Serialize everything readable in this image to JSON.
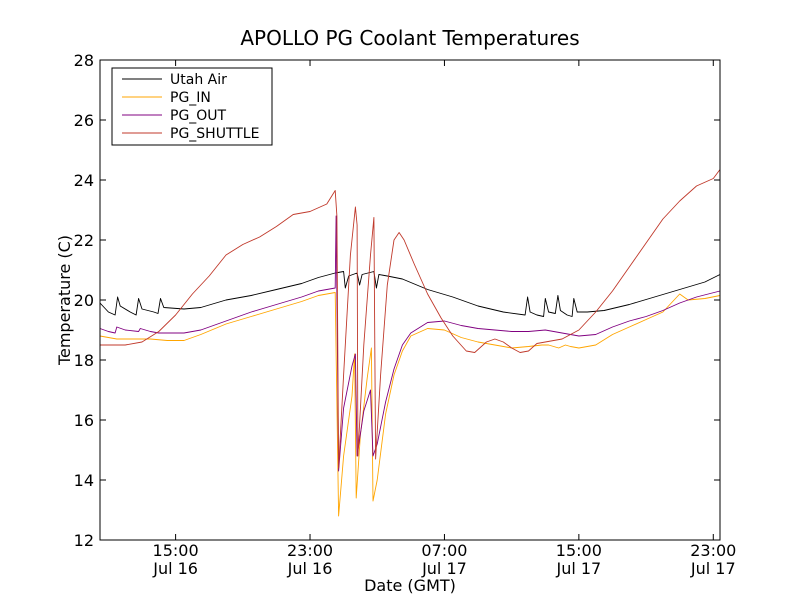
{
  "chart_data": {
    "type": "line",
    "title": "APOLLO PG Coolant Temperatures",
    "xlabel": "Date (GMT)",
    "ylabel": "Temperature (C)",
    "ylim": [
      12,
      28
    ],
    "xlim": [
      10.5,
      47.4
    ],
    "yticks": [
      12,
      14,
      16,
      18,
      20,
      22,
      24,
      26,
      28
    ],
    "xticks": [
      {
        "x": 15,
        "time": "15:00",
        "date": "Jul 16"
      },
      {
        "x": 23,
        "time": "23:00",
        "date": "Jul 16"
      },
      {
        "x": 31,
        "time": "07:00",
        "date": "Jul 17"
      },
      {
        "x": 39,
        "time": "15:00",
        "date": "Jul 17"
      },
      {
        "x": 47,
        "time": "23:00",
        "date": "Jul 17"
      }
    ],
    "x_units": "hours since 00:00 Jul 16 GMT",
    "legend_position": "upper-left",
    "series": [
      {
        "name": "Utah Air",
        "color": "#000000",
        "points": [
          [
            10.5,
            19.9
          ],
          [
            11.0,
            19.6
          ],
          [
            11.4,
            19.5
          ],
          [
            11.55,
            20.1
          ],
          [
            11.7,
            19.8
          ],
          [
            12.3,
            19.6
          ],
          [
            12.65,
            19.5
          ],
          [
            12.8,
            20.05
          ],
          [
            13.0,
            19.7
          ],
          [
            13.7,
            19.6
          ],
          [
            13.95,
            19.55
          ],
          [
            14.1,
            20.05
          ],
          [
            14.3,
            19.75
          ],
          [
            15.5,
            19.7
          ],
          [
            16.5,
            19.75
          ],
          [
            18.0,
            20.0
          ],
          [
            19.5,
            20.15
          ],
          [
            21.0,
            20.35
          ],
          [
            22.5,
            20.55
          ],
          [
            23.5,
            20.75
          ],
          [
            24.5,
            20.9
          ],
          [
            25.0,
            20.95
          ],
          [
            25.1,
            20.4
          ],
          [
            25.3,
            20.8
          ],
          [
            25.8,
            20.9
          ],
          [
            25.95,
            20.5
          ],
          [
            26.1,
            20.85
          ],
          [
            26.8,
            20.95
          ],
          [
            26.95,
            20.4
          ],
          [
            27.1,
            20.85
          ],
          [
            27.6,
            20.8
          ],
          [
            28.5,
            20.7
          ],
          [
            30.0,
            20.35
          ],
          [
            31.5,
            20.1
          ],
          [
            33.0,
            19.8
          ],
          [
            34.5,
            19.6
          ],
          [
            35.8,
            19.5
          ],
          [
            35.95,
            20.1
          ],
          [
            36.1,
            19.6
          ],
          [
            36.5,
            19.5
          ],
          [
            36.9,
            19.45
          ],
          [
            37.0,
            20.05
          ],
          [
            37.2,
            19.6
          ],
          [
            37.6,
            19.55
          ],
          [
            37.75,
            20.15
          ],
          [
            37.9,
            19.65
          ],
          [
            38.3,
            19.5
          ],
          [
            38.6,
            19.45
          ],
          [
            38.7,
            20.05
          ],
          [
            38.9,
            19.6
          ],
          [
            39.5,
            19.6
          ],
          [
            40.5,
            19.65
          ],
          [
            42.0,
            19.85
          ],
          [
            43.5,
            20.1
          ],
          [
            45.0,
            20.35
          ],
          [
            46.5,
            20.6
          ],
          [
            47.4,
            20.85
          ]
        ]
      },
      {
        "name": "PG_IN",
        "color": "#ffa500",
        "points": [
          [
            10.5,
            18.8
          ],
          [
            11.5,
            18.7
          ],
          [
            12.5,
            18.7
          ],
          [
            13.5,
            18.7
          ],
          [
            14.5,
            18.65
          ],
          [
            15.5,
            18.65
          ],
          [
            16.5,
            18.85
          ],
          [
            18.0,
            19.2
          ],
          [
            19.5,
            19.45
          ],
          [
            21.0,
            19.7
          ],
          [
            22.5,
            19.95
          ],
          [
            23.5,
            20.15
          ],
          [
            24.5,
            20.25
          ],
          [
            24.7,
            12.8
          ],
          [
            25.0,
            14.8
          ],
          [
            25.5,
            16.8
          ],
          [
            25.65,
            18.2
          ],
          [
            25.75,
            13.4
          ],
          [
            26.0,
            15.5
          ],
          [
            26.4,
            17.4
          ],
          [
            26.65,
            18.4
          ],
          [
            26.75,
            13.3
          ],
          [
            27.0,
            14.0
          ],
          [
            27.5,
            16.2
          ],
          [
            28.0,
            17.5
          ],
          [
            28.5,
            18.3
          ],
          [
            29.0,
            18.8
          ],
          [
            30.0,
            19.05
          ],
          [
            31.0,
            19.0
          ],
          [
            32.0,
            18.75
          ],
          [
            33.0,
            18.6
          ],
          [
            34.0,
            18.5
          ],
          [
            35.0,
            18.4
          ],
          [
            36.0,
            18.45
          ],
          [
            36.8,
            18.5
          ],
          [
            37.2,
            18.5
          ],
          [
            37.8,
            18.4
          ],
          [
            38.2,
            18.5
          ],
          [
            38.5,
            18.45
          ],
          [
            39.0,
            18.4
          ],
          [
            40.0,
            18.5
          ],
          [
            41.0,
            18.85
          ],
          [
            42.0,
            19.1
          ],
          [
            43.0,
            19.35
          ],
          [
            44.0,
            19.6
          ],
          [
            45.0,
            20.2
          ],
          [
            45.5,
            20.0
          ],
          [
            46.5,
            20.05
          ],
          [
            47.4,
            20.15
          ]
        ]
      },
      {
        "name": "PG_OUT",
        "color": "#800080",
        "points": [
          [
            10.5,
            19.05
          ],
          [
            11.0,
            18.95
          ],
          [
            11.4,
            18.9
          ],
          [
            11.5,
            19.1
          ],
          [
            12.0,
            19.0
          ],
          [
            12.8,
            18.95
          ],
          [
            12.9,
            19.05
          ],
          [
            13.5,
            18.95
          ],
          [
            14.0,
            18.9
          ],
          [
            14.5,
            18.9
          ],
          [
            15.5,
            18.9
          ],
          [
            16.5,
            19.0
          ],
          [
            18.0,
            19.3
          ],
          [
            19.5,
            19.6
          ],
          [
            21.0,
            19.85
          ],
          [
            22.5,
            20.1
          ],
          [
            23.5,
            20.3
          ],
          [
            24.5,
            20.4
          ],
          [
            24.55,
            22.8
          ],
          [
            24.7,
            14.3
          ],
          [
            25.0,
            16.4
          ],
          [
            25.5,
            17.8
          ],
          [
            25.7,
            18.2
          ],
          [
            25.8,
            14.8
          ],
          [
            26.2,
            16.3
          ],
          [
            26.6,
            17.0
          ],
          [
            26.75,
            14.8
          ],
          [
            27.0,
            15.2
          ],
          [
            27.5,
            16.6
          ],
          [
            28.0,
            17.7
          ],
          [
            28.5,
            18.5
          ],
          [
            29.0,
            18.9
          ],
          [
            30.0,
            19.25
          ],
          [
            31.0,
            19.3
          ],
          [
            32.0,
            19.15
          ],
          [
            33.0,
            19.05
          ],
          [
            34.0,
            19.0
          ],
          [
            35.0,
            18.95
          ],
          [
            36.0,
            18.95
          ],
          [
            37.0,
            19.0
          ],
          [
            38.0,
            18.9
          ],
          [
            39.0,
            18.8
          ],
          [
            40.0,
            18.85
          ],
          [
            41.0,
            19.1
          ],
          [
            42.0,
            19.3
          ],
          [
            43.0,
            19.45
          ],
          [
            44.0,
            19.65
          ],
          [
            45.0,
            19.9
          ],
          [
            46.0,
            20.1
          ],
          [
            47.4,
            20.3
          ]
        ]
      },
      {
        "name": "PG_SHUTTLE",
        "color": "#c0392b",
        "points": [
          [
            10.5,
            18.5
          ],
          [
            12.0,
            18.5
          ],
          [
            13.0,
            18.6
          ],
          [
            14.0,
            18.95
          ],
          [
            15.0,
            19.5
          ],
          [
            16.0,
            20.2
          ],
          [
            17.0,
            20.8
          ],
          [
            18.0,
            21.5
          ],
          [
            19.0,
            21.85
          ],
          [
            20.0,
            22.1
          ],
          [
            21.0,
            22.45
          ],
          [
            22.0,
            22.85
          ],
          [
            23.0,
            22.95
          ],
          [
            24.0,
            23.2
          ],
          [
            24.5,
            23.65
          ],
          [
            24.6,
            22.8
          ],
          [
            24.7,
            14.4
          ],
          [
            25.0,
            17.5
          ],
          [
            25.4,
            21.5
          ],
          [
            25.7,
            23.1
          ],
          [
            25.8,
            22.5
          ],
          [
            25.85,
            14.8
          ],
          [
            26.2,
            18.5
          ],
          [
            26.6,
            21.5
          ],
          [
            26.8,
            22.75
          ],
          [
            26.9,
            14.7
          ],
          [
            27.2,
            17.5
          ],
          [
            27.6,
            20.5
          ],
          [
            28.0,
            22.0
          ],
          [
            28.3,
            22.25
          ],
          [
            28.6,
            22.0
          ],
          [
            29.2,
            21.2
          ],
          [
            30.0,
            20.2
          ],
          [
            30.8,
            19.4
          ],
          [
            31.5,
            18.8
          ],
          [
            32.3,
            18.3
          ],
          [
            32.8,
            18.25
          ],
          [
            33.5,
            18.6
          ],
          [
            34.0,
            18.7
          ],
          [
            34.5,
            18.6
          ],
          [
            35.0,
            18.4
          ],
          [
            35.5,
            18.25
          ],
          [
            36.0,
            18.3
          ],
          [
            36.5,
            18.55
          ],
          [
            37.0,
            18.6
          ],
          [
            37.5,
            18.65
          ],
          [
            38.0,
            18.7
          ],
          [
            39.0,
            19.0
          ],
          [
            40.0,
            19.6
          ],
          [
            41.0,
            20.3
          ],
          [
            42.0,
            21.1
          ],
          [
            43.0,
            21.9
          ],
          [
            44.0,
            22.7
          ],
          [
            45.0,
            23.3
          ],
          [
            46.0,
            23.8
          ],
          [
            47.0,
            24.05
          ],
          [
            47.4,
            24.35
          ]
        ]
      }
    ]
  }
}
